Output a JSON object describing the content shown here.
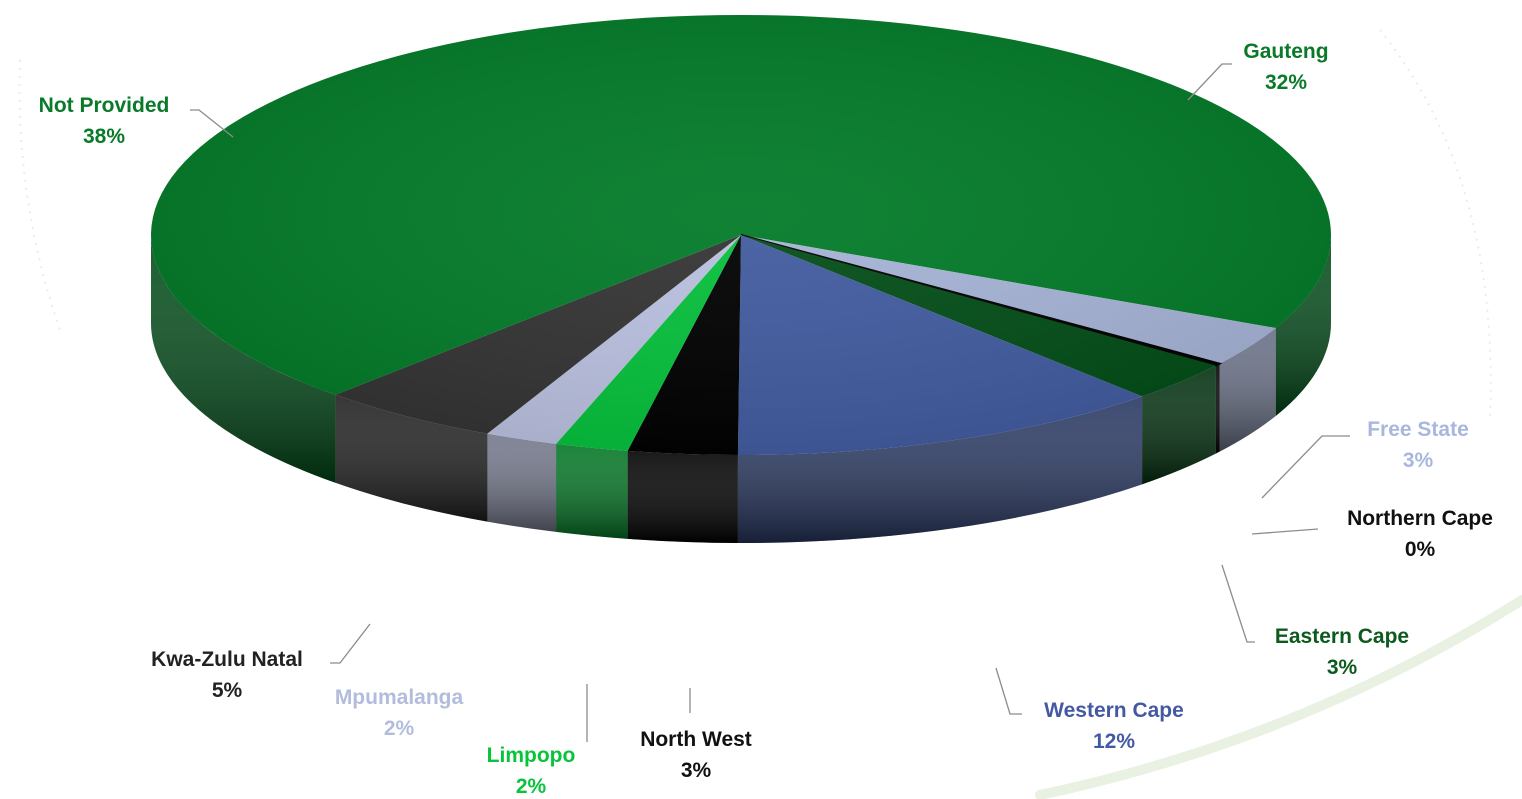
{
  "chart_data": {
    "type": "pie",
    "style": "3d-exploded-none",
    "title": "",
    "slices": [
      {
        "name": "Gauteng",
        "value": 32,
        "label": "32%",
        "color": "#027a28",
        "label_color": "#0a7a2a"
      },
      {
        "name": "Free State",
        "value": 3,
        "label": "3%",
        "color": "#a6b3d6",
        "label_color": "#a9b7de"
      },
      {
        "name": "Northern Cape",
        "value": 0,
        "label": "0%",
        "color": "#050505",
        "label_color": "#111111"
      },
      {
        "name": "Eastern Cape",
        "value": 3,
        "label": "3%",
        "color": "#024d17",
        "label_color": "#0d5a1f"
      },
      {
        "name": "Western Cape",
        "value": 12,
        "label": "12%",
        "color": "#415b9f",
        "label_color": "#4459a3"
      },
      {
        "name": "North West",
        "value": 3,
        "label": "3%",
        "color": "#000000",
        "label_color": "#111111"
      },
      {
        "name": "Limpopo",
        "value": 2,
        "label": "2%",
        "color": "#05c03b",
        "label_color": "#08c43a"
      },
      {
        "name": "Mpumalanga",
        "value": 2,
        "label": "2%",
        "color": "#b9c0df",
        "label_color": "#b3bcdc"
      },
      {
        "name": "Kwa-Zulu Natal",
        "value": 5,
        "label": "5%",
        "color": "#333333",
        "label_color": "#222222"
      },
      {
        "name": "Not Provided",
        "value": 38,
        "label": "38%",
        "color": "#027a28",
        "label_color": "#0a7a2a"
      }
    ],
    "legend": "none",
    "data_labels": "outside-with-leader-lines"
  }
}
